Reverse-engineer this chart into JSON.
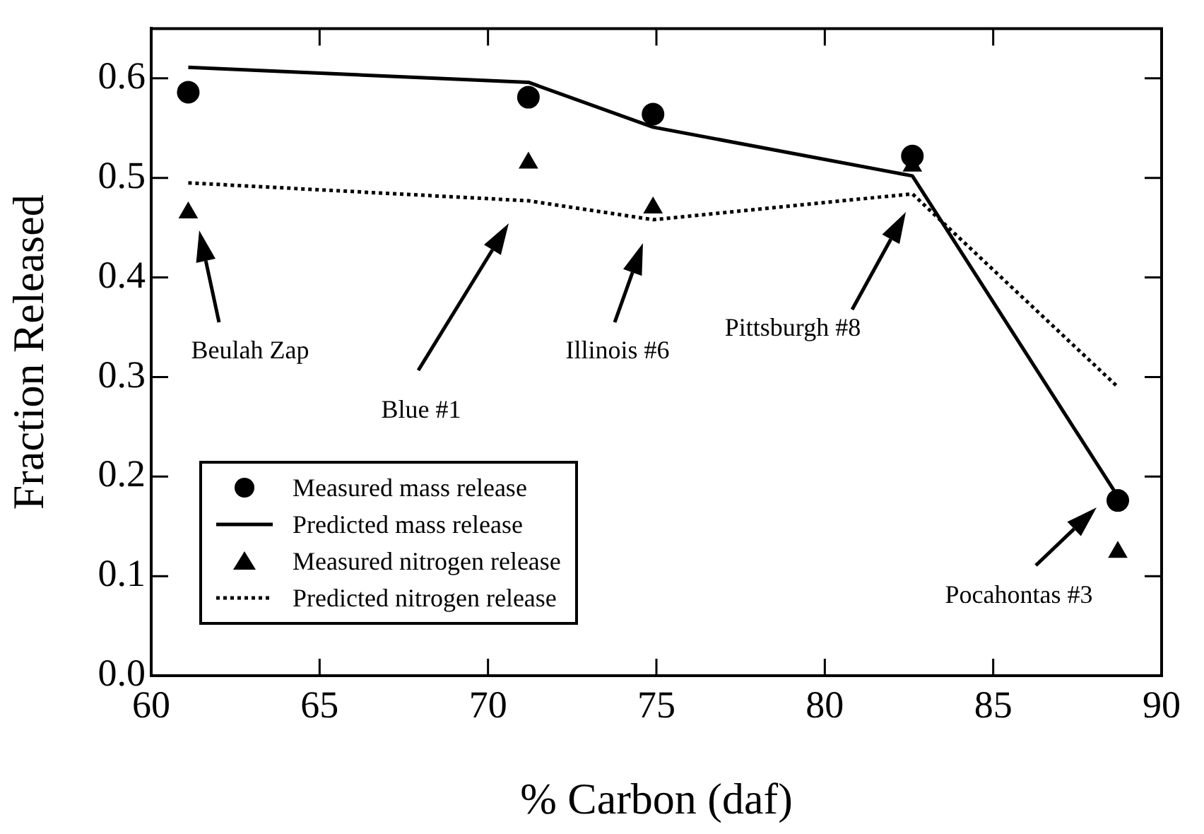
{
  "chart_data": {
    "type": "scatter",
    "xlabel": "% Carbon (daf)",
    "ylabel": "Fraction Released",
    "x": [
      61.1,
      71.2,
      74.9,
      82.6,
      88.7
    ],
    "series": [
      {
        "name": "Measured mass release",
        "type": "scatter",
        "marker": "circle",
        "color": "#000000",
        "values": [
          0.586,
          0.581,
          0.564,
          0.522,
          0.176
        ]
      },
      {
        "name": "Predicted mass release",
        "type": "line",
        "marker": "none",
        "line_style": "solid",
        "color": "#000000",
        "values": [
          0.611,
          0.596,
          0.551,
          0.502,
          0.18
        ]
      },
      {
        "name": "Measured nitrogen release",
        "type": "scatter",
        "marker": "triangle",
        "color": "#000000",
        "values": [
          0.465,
          0.515,
          0.47,
          0.512,
          0.124
        ]
      },
      {
        "name": "Predicted nitrogen release",
        "type": "line",
        "marker": "none",
        "line_style": "dotted",
        "color": "#000000",
        "values": [
          0.495,
          0.477,
          0.458,
          0.484,
          0.29
        ]
      }
    ],
    "xlim": [
      60,
      90
    ],
    "xticks": [
      60,
      65,
      70,
      75,
      80,
      85,
      90
    ],
    "ylim": [
      0,
      0.65
    ],
    "yticks": [
      {
        "value": 0,
        "label": "0.0"
      },
      0.1,
      0.2,
      0.3,
      0.4,
      0.5,
      0.6
    ],
    "grid": false,
    "legend": "bottom left",
    "annotations": [
      "Beulah Zap",
      "Blue #1",
      "Illinois #6",
      "Pittsburgh #8",
      "Pocahontas #3"
    ]
  }
}
